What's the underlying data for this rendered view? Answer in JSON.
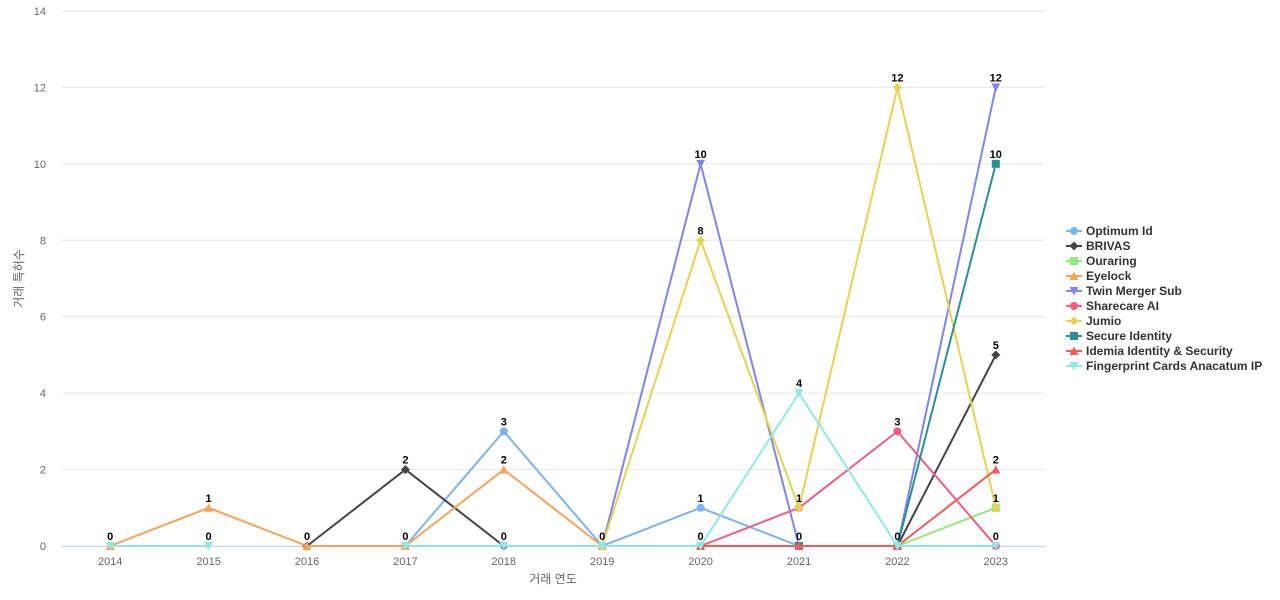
{
  "chart_data": {
    "type": "line",
    "title": "",
    "xlabel": "거래 연도",
    "ylabel": "거래 특허수",
    "x": [
      "2014",
      "2015",
      "2016",
      "2017",
      "2018",
      "2019",
      "2020",
      "2021",
      "2022",
      "2023"
    ],
    "ylim": [
      0,
      14
    ],
    "yticks": [
      0,
      2,
      4,
      6,
      8,
      10,
      12,
      14
    ],
    "grid": true,
    "legend_position": "right",
    "series": [
      {
        "name": "Optimum Id",
        "color": "#7cb5ec",
        "marker": "circle",
        "values": [
          null,
          null,
          null,
          0,
          3,
          0,
          1,
          0,
          null,
          null
        ]
      },
      {
        "name": "BRIVAS",
        "color": "#434348",
        "marker": "diamond",
        "values": [
          null,
          null,
          0,
          2,
          0,
          null,
          null,
          null,
          0,
          5
        ]
      },
      {
        "name": "Ouraring",
        "color": "#90ed7d",
        "marker": "square",
        "values": [
          null,
          null,
          null,
          null,
          null,
          null,
          null,
          null,
          0,
          1
        ]
      },
      {
        "name": "Eyelock",
        "color": "#f7a35c",
        "marker": "triangle",
        "values": [
          0,
          1,
          0,
          0,
          2,
          0,
          null,
          null,
          null,
          null
        ]
      },
      {
        "name": "Twin Merger Sub",
        "color": "#8085e9",
        "marker": "triangle-down",
        "values": [
          null,
          null,
          null,
          null,
          null,
          0,
          10,
          0,
          0,
          12
        ]
      },
      {
        "name": "Sharecare AI",
        "color": "#f15c80",
        "marker": "circle",
        "values": [
          null,
          null,
          null,
          null,
          null,
          null,
          0,
          1,
          3,
          0
        ]
      },
      {
        "name": "Jumio",
        "color": "#e4d354",
        "marker": "diamond",
        "values": [
          null,
          null,
          null,
          null,
          null,
          0,
          8,
          1,
          12,
          1
        ]
      },
      {
        "name": "Secure Identity",
        "color": "#2b908f",
        "marker": "square",
        "values": [
          null,
          null,
          null,
          null,
          null,
          null,
          null,
          0,
          0,
          10
        ]
      },
      {
        "name": "Idemia Identity & Security",
        "color": "#f45b5b",
        "marker": "triangle",
        "values": [
          null,
          null,
          null,
          null,
          null,
          null,
          0,
          0,
          0,
          2
        ]
      },
      {
        "name": "Fingerprint Cards Anacatum IP",
        "color": "#91e8e1",
        "marker": "triangle-down",
        "values": [
          0,
          0,
          null,
          0,
          0,
          0,
          0,
          4,
          0,
          0
        ]
      }
    ],
    "data_labels": [
      {
        "x": "2014",
        "value": 0
      },
      {
        "x": "2015",
        "value": 1
      },
      {
        "x": "2015",
        "value": 0,
        "row": 2
      },
      {
        "x": "2016",
        "value": 0
      },
      {
        "x": "2017",
        "value": 2
      },
      {
        "x": "2017",
        "value": 0
      },
      {
        "x": "2018",
        "value": 3
      },
      {
        "x": "2018",
        "value": 2
      },
      {
        "x": "2018",
        "value": 0
      },
      {
        "x": "2019",
        "value": 0
      },
      {
        "x": "2020",
        "value": 10
      },
      {
        "x": "2020",
        "value": 8
      },
      {
        "x": "2020",
        "value": 1
      },
      {
        "x": "2020",
        "value": 0
      },
      {
        "x": "2021",
        "value": 4
      },
      {
        "x": "2021",
        "value": 1
      },
      {
        "x": "2021",
        "value": 0
      },
      {
        "x": "2022",
        "value": 12
      },
      {
        "x": "2022",
        "value": 3
      },
      {
        "x": "2022",
        "value": 0
      },
      {
        "x": "2023",
        "value": 12
      },
      {
        "x": "2023",
        "value": 10
      },
      {
        "x": "2023",
        "value": 5
      },
      {
        "x": "2023",
        "value": 2
      },
      {
        "x": "2023",
        "value": 1
      },
      {
        "x": "2023",
        "value": 0
      }
    ]
  }
}
